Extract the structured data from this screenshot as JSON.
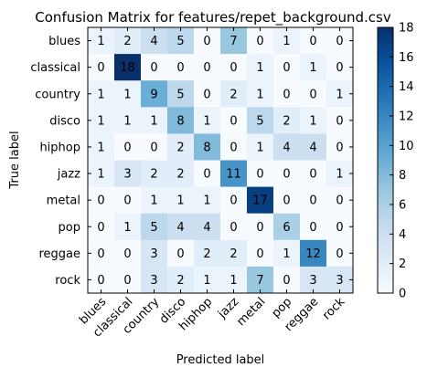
{
  "chart_data": {
    "type": "heatmap",
    "title": "Confusion Matrix for features/repet_background.csv",
    "xlabel": "Predicted label",
    "ylabel": "True label",
    "row_labels": [
      "blues",
      "classical",
      "country",
      "disco",
      "hiphop",
      "jazz",
      "metal",
      "pop",
      "reggae",
      "rock"
    ],
    "col_labels": [
      "blues",
      "classical",
      "country",
      "disco",
      "hiphop",
      "jazz",
      "metal",
      "pop",
      "reggae",
      "rock"
    ],
    "values": [
      [
        1,
        2,
        4,
        5,
        0,
        7,
        0,
        1,
        0,
        0
      ],
      [
        0,
        18,
        0,
        0,
        0,
        0,
        1,
        0,
        1,
        0
      ],
      [
        1,
        1,
        9,
        5,
        0,
        2,
        1,
        0,
        0,
        1
      ],
      [
        1,
        1,
        1,
        8,
        1,
        0,
        5,
        2,
        1,
        0
      ],
      [
        1,
        0,
        0,
        2,
        8,
        0,
        1,
        4,
        4,
        0
      ],
      [
        1,
        3,
        2,
        2,
        0,
        11,
        0,
        0,
        0,
        1
      ],
      [
        0,
        0,
        1,
        1,
        1,
        0,
        17,
        0,
        0,
        0
      ],
      [
        0,
        1,
        5,
        4,
        4,
        0,
        0,
        6,
        0,
        0
      ],
      [
        0,
        0,
        3,
        0,
        2,
        2,
        0,
        1,
        12,
        0
      ],
      [
        0,
        0,
        3,
        2,
        1,
        1,
        7,
        0,
        3,
        3
      ]
    ],
    "colormap": "Blues",
    "color_range": [
      0,
      18
    ],
    "colorbar_ticks": [
      "0",
      "2",
      "4",
      "6",
      "8",
      "10",
      "12",
      "14",
      "16",
      "18"
    ],
    "colorbar_tick_values": [
      0,
      2,
      4,
      6,
      8,
      10,
      12,
      14,
      16,
      18
    ]
  }
}
